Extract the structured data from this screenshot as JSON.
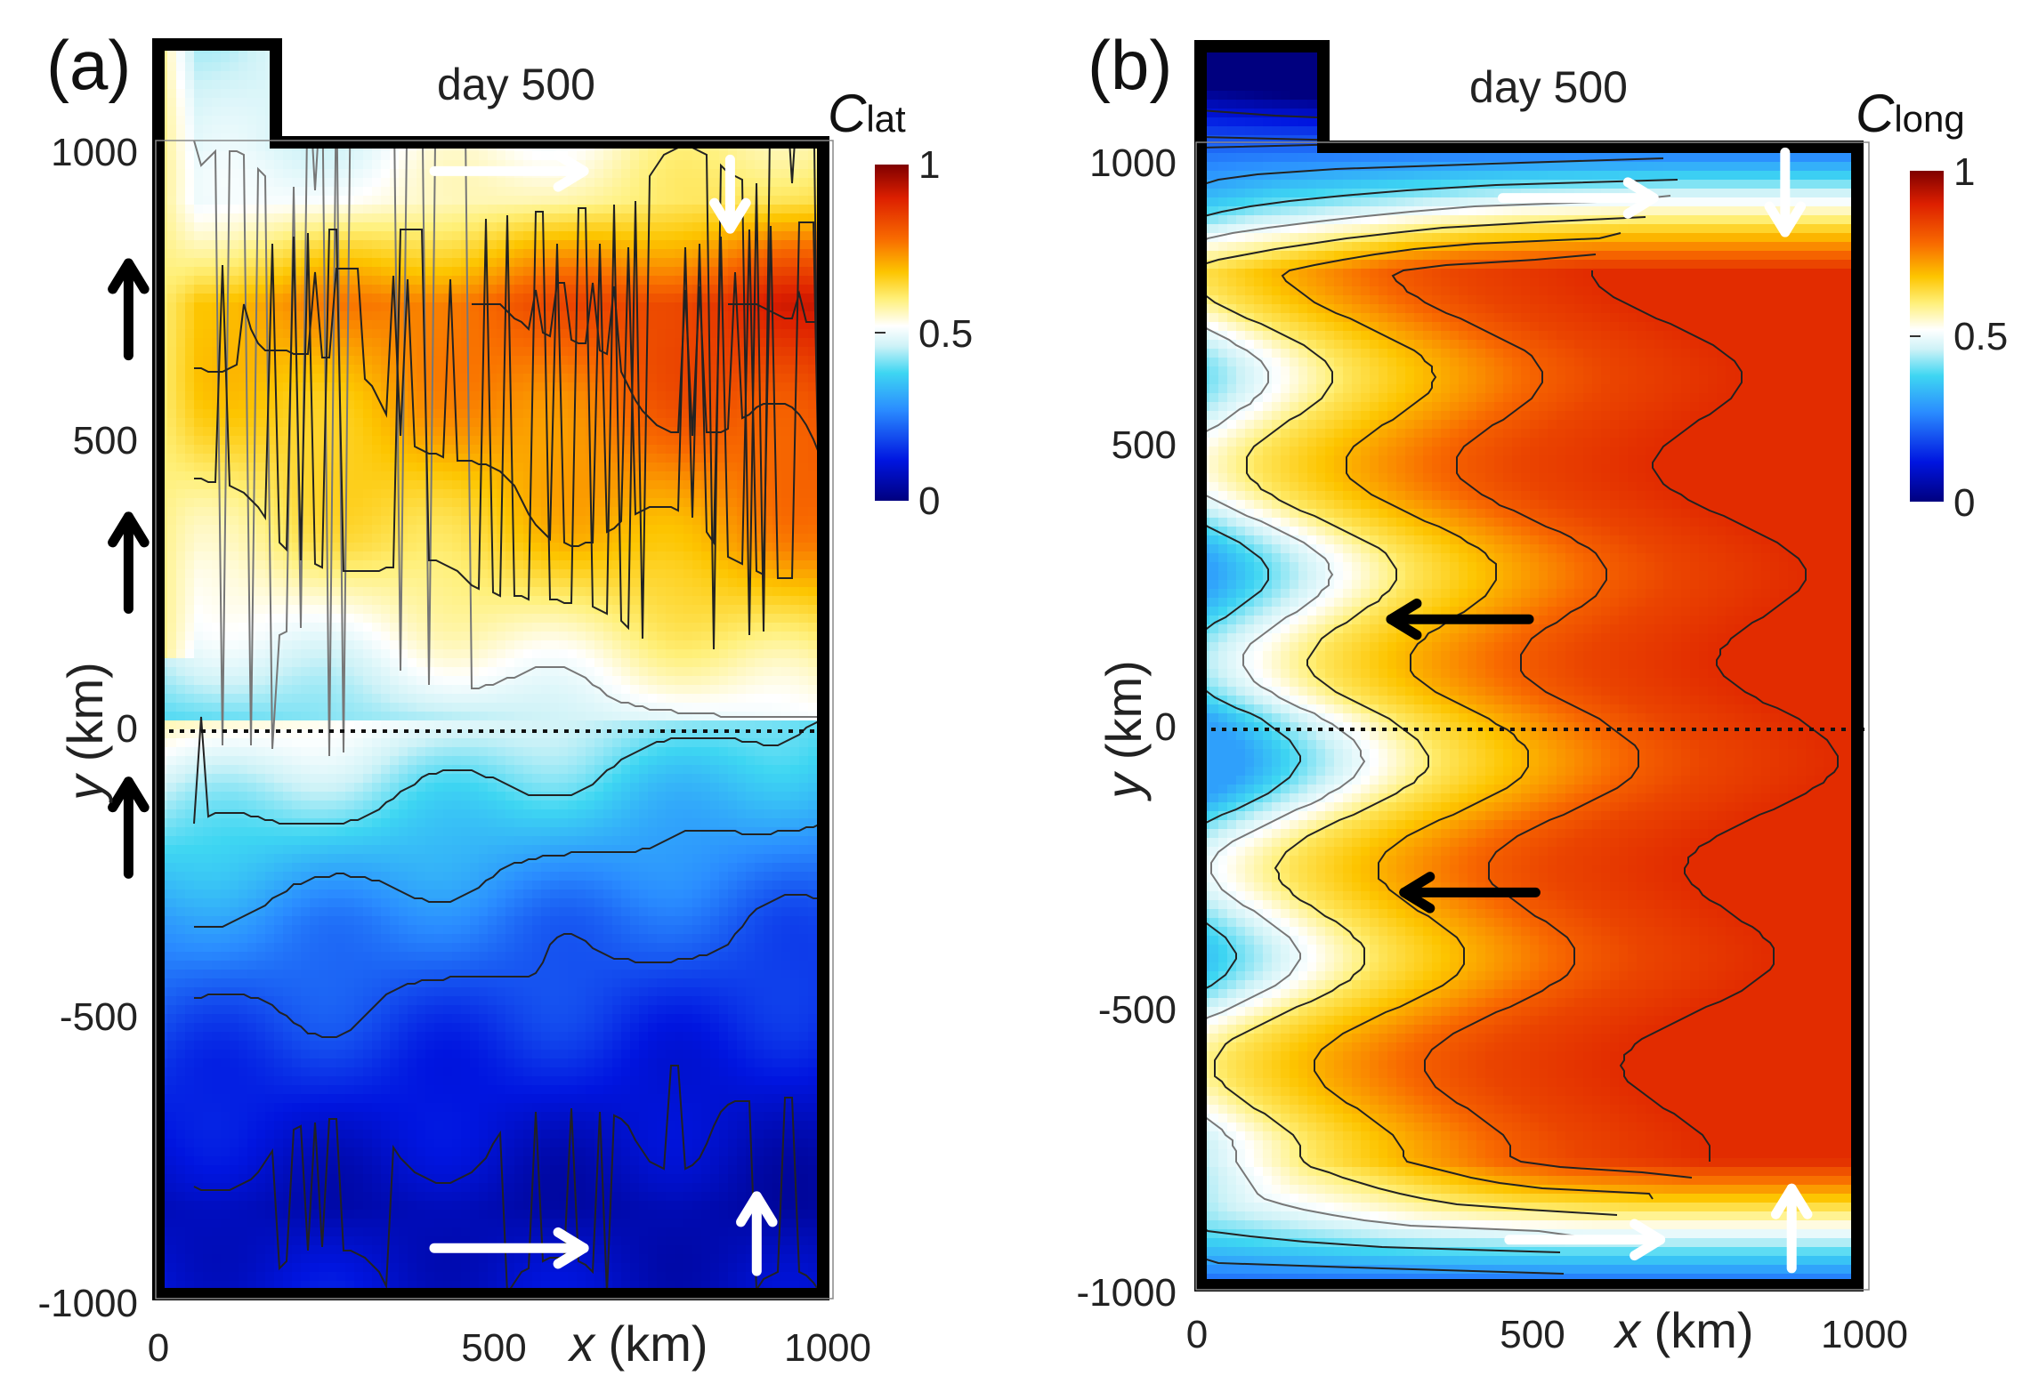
{
  "chart_data": [
    {
      "type": "heatmap",
      "panel_label": "(a)",
      "title": "day 500",
      "colorbar_symbol": "C",
      "colorbar_subscript": "lat",
      "colorbar_ticks": [
        "1",
        "0.5",
        "0"
      ],
      "colorbar_range": [
        0,
        1
      ],
      "xlabel_var": "x",
      "xlabel_unit": " (km)",
      "ylabel_var": "y",
      "ylabel_unit": " (km)",
      "x_ticks": [
        "0",
        "500",
        "1000"
      ],
      "y_ticks": [
        "1000",
        "500",
        "0",
        "-500",
        "-1000"
      ],
      "xlim": [
        0,
        1000
      ],
      "ylim": [
        -1000,
        1000
      ],
      "contour_levels": [
        0.1,
        0.2,
        0.3,
        0.4,
        0.5,
        0.6,
        0.7,
        0.8,
        0.9
      ],
      "profile_y": [
        -1000,
        -850,
        -600,
        -350,
        -130,
        0,
        130,
        300,
        500,
        720,
        900,
        1000
      ],
      "profile_c": [
        0.1,
        0.06,
        0.14,
        0.25,
        0.4,
        0.5,
        0.6,
        0.72,
        0.8,
        0.88,
        0.62,
        0.58
      ],
      "arrows": [
        {
          "color": "white",
          "x": [
            415,
            640
          ],
          "y": [
            950,
            950
          ]
        },
        {
          "color": "white",
          "x": [
            860,
            860
          ],
          "y": [
            970,
            850
          ]
        },
        {
          "color": "white",
          "x": [
            415,
            640
          ],
          "y": [
            -920,
            -920
          ]
        },
        {
          "color": "white",
          "x": [
            900,
            900
          ],
          "y": [
            -960,
            -830
          ]
        },
        {
          "color": "black",
          "x": [
            -45,
            -45
          ],
          "y": [
            630,
            790
          ]
        },
        {
          "color": "black",
          "x": [
            -45,
            -45
          ],
          "y": [
            190,
            350
          ]
        },
        {
          "color": "black",
          "x": [
            -45,
            -45
          ],
          "y": [
            -270,
            -110
          ]
        }
      ]
    },
    {
      "type": "heatmap",
      "panel_label": "(b)",
      "title": "day 500",
      "colorbar_symbol": "C",
      "colorbar_subscript": "long",
      "colorbar_ticks": [
        "1",
        "0.5",
        "0"
      ],
      "colorbar_range": [
        0,
        1
      ],
      "xlabel_var": "x",
      "xlabel_unit": " (km)",
      "ylabel_var": "y",
      "ylabel_unit": " (km)",
      "x_ticks": [
        "0",
        "500",
        "1000"
      ],
      "y_ticks": [
        "1000",
        "500",
        "0",
        "-500",
        "-1000"
      ],
      "xlim": [
        0,
        1000
      ],
      "ylim": [
        -1000,
        1000
      ],
      "contour_levels": [
        0.1,
        0.2,
        0.3,
        0.4,
        0.5,
        0.6,
        0.7,
        0.8,
        0.9
      ],
      "profile_x": [
        0,
        100,
        200,
        300,
        400,
        500,
        600,
        700,
        800,
        900,
        1000
      ],
      "profile_c": [
        0.3,
        0.42,
        0.52,
        0.62,
        0.68,
        0.74,
        0.8,
        0.84,
        0.86,
        0.88,
        0.88
      ],
      "arrows": [
        {
          "color": "white",
          "x": [
            460,
            690
          ],
          "y": [
            910,
            910
          ]
        },
        {
          "color": "white",
          "x": [
            890,
            890
          ],
          "y": [
            990,
            850
          ]
        },
        {
          "color": "white",
          "x": [
            470,
            700
          ],
          "y": [
            -920,
            -920
          ]
        },
        {
          "color": "white",
          "x": [
            900,
            900
          ],
          "y": [
            -970,
            -830
          ]
        },
        {
          "color": "black",
          "x": [
            500,
            290
          ],
          "y": [
            170,
            170
          ]
        },
        {
          "color": "black",
          "x": [
            510,
            310
          ],
          "y": [
            -310,
            -310
          ]
        }
      ]
    }
  ]
}
